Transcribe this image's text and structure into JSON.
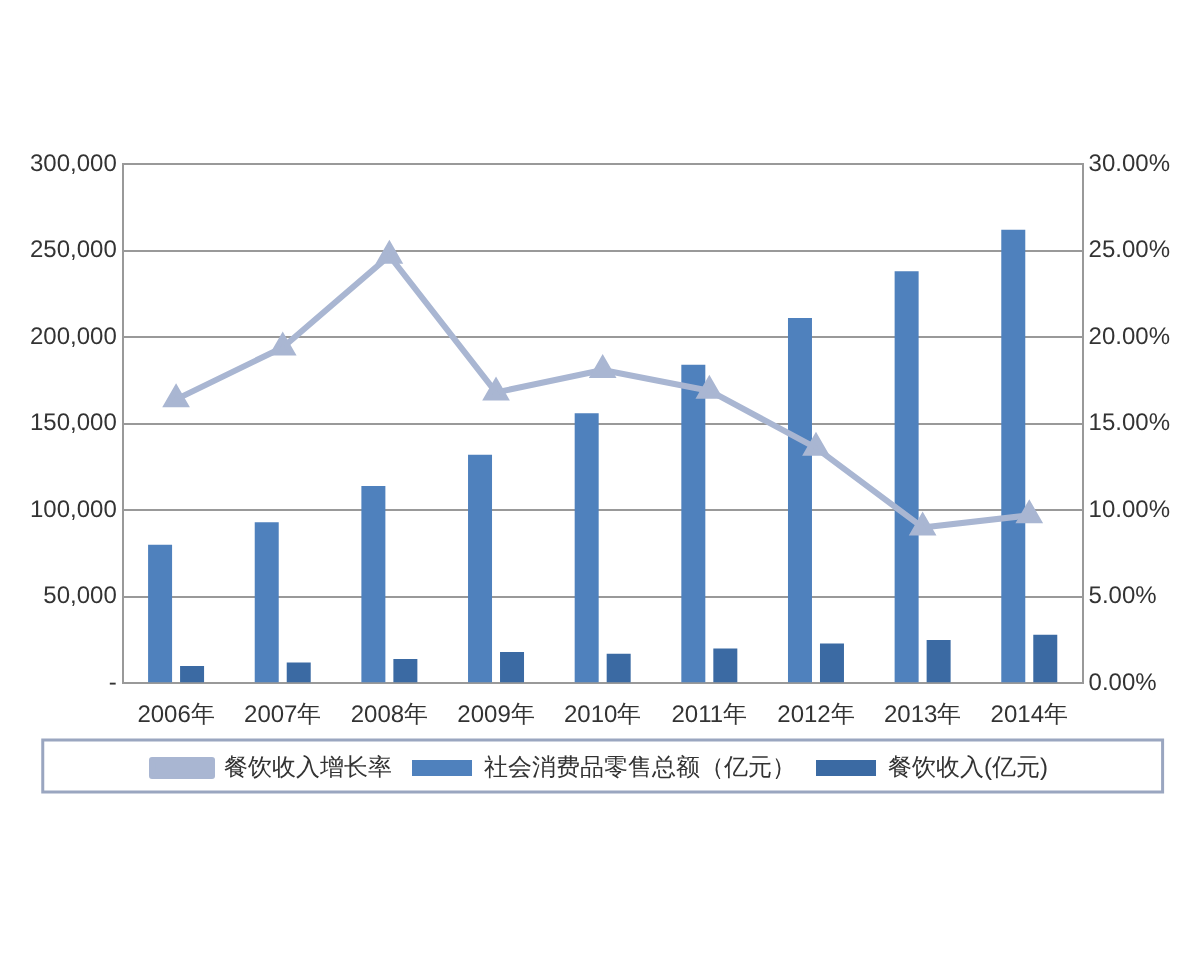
{
  "chart_data": {
    "type": "bar",
    "categories": [
      "2006年",
      "2007年",
      "2008年",
      "2009年",
      "2010年",
      "2011年",
      "2012年",
      "2013年",
      "2014年"
    ],
    "series": [
      {
        "name": "社会消费品零售总额（亿元）",
        "color": "#4f81bd",
        "values": [
          80000,
          93000,
          114000,
          132000,
          156000,
          184000,
          211000,
          238000,
          262000
        ]
      },
      {
        "name": "餐饮收入(亿元)",
        "color": "#3b6aa3",
        "values": [
          10000,
          12000,
          14000,
          18000,
          17000,
          20000,
          23000,
          25000,
          28000
        ]
      },
      {
        "name": "餐饮收入增长率",
        "type": "line",
        "axis": "y2",
        "color": "#a9b6d2",
        "values": [
          16.4,
          19.4,
          24.7,
          16.8,
          18.1,
          16.9,
          13.6,
          9.0,
          9.7
        ]
      }
    ],
    "ylim": [
      0,
      300000
    ],
    "yticks": [
      {
        "value": 0,
        "label": "-"
      },
      {
        "value": 50000,
        "label": "50,000"
      },
      {
        "value": 100000,
        "label": "100,000"
      },
      {
        "value": 150000,
        "label": "150,000"
      },
      {
        "value": 200000,
        "label": "200,000"
      },
      {
        "value": 250000,
        "label": "250,000"
      },
      {
        "value": 300000,
        "label": "300,000"
      }
    ],
    "y2lim": [
      0,
      30
    ],
    "y2ticks": [
      {
        "value": 0,
        "label": "0.00%"
      },
      {
        "value": 5,
        "label": "5.00%"
      },
      {
        "value": 10,
        "label": "10.00%"
      },
      {
        "value": 15,
        "label": "15.00%"
      },
      {
        "value": 20,
        "label": "20.00%"
      },
      {
        "value": 25,
        "label": "25.00%"
      },
      {
        "value": 30,
        "label": "30.00%"
      }
    ],
    "grid": "y",
    "legend": "bottom",
    "marker": "triangle"
  }
}
